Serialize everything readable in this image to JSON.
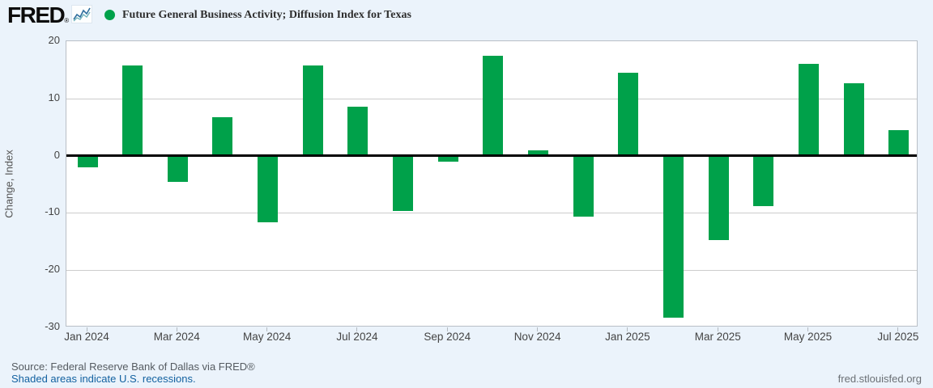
{
  "header": {
    "logo_text": "FRED",
    "logo_reg_mark": "®",
    "legend_dot_color": "#00a14a",
    "title": "Future General Business Activity; Diffusion Index for Texas"
  },
  "chart_data": {
    "type": "bar",
    "title": "Future General Business Activity; Diffusion Index for Texas",
    "xlabel": "",
    "ylabel": "Change, Index",
    "ylim": [
      -30,
      20
    ],
    "yticks": [
      20,
      10,
      0,
      -10,
      -20,
      -30
    ],
    "grid": true,
    "bar_color": "#00a14a",
    "categories": [
      "Jan 2024",
      "Feb 2024",
      "Mar 2024",
      "Apr 2024",
      "May 2024",
      "Jun 2024",
      "Jul 2024",
      "Aug 2024",
      "Sep 2024",
      "Oct 2024",
      "Nov 2024",
      "Dec 2024",
      "Jan 2025",
      "Feb 2025",
      "Mar 2025",
      "Apr 2025",
      "May 2025",
      "Jun 2025",
      "Jul 2025"
    ],
    "values": [
      -2.0,
      15.8,
      -4.6,
      6.7,
      -11.7,
      15.7,
      8.6,
      -9.7,
      -1.0,
      17.4,
      1.0,
      -10.7,
      14.5,
      -28.3,
      -14.7,
      -8.8,
      16.1,
      12.7,
      4.4
    ],
    "xtick_labels": [
      "Jan 2024",
      "Mar 2024",
      "May 2024",
      "Jul 2024",
      "Sep 2024",
      "Nov 2024",
      "Jan 2025",
      "Mar 2025",
      "May 2025",
      "Jul 2025"
    ]
  },
  "footer": {
    "source": "Source: Federal Reserve Bank of Dallas via FRED®",
    "recessions_note": "Shaded areas indicate U.S. recessions.",
    "site": "fred.stlouisfed.org"
  }
}
